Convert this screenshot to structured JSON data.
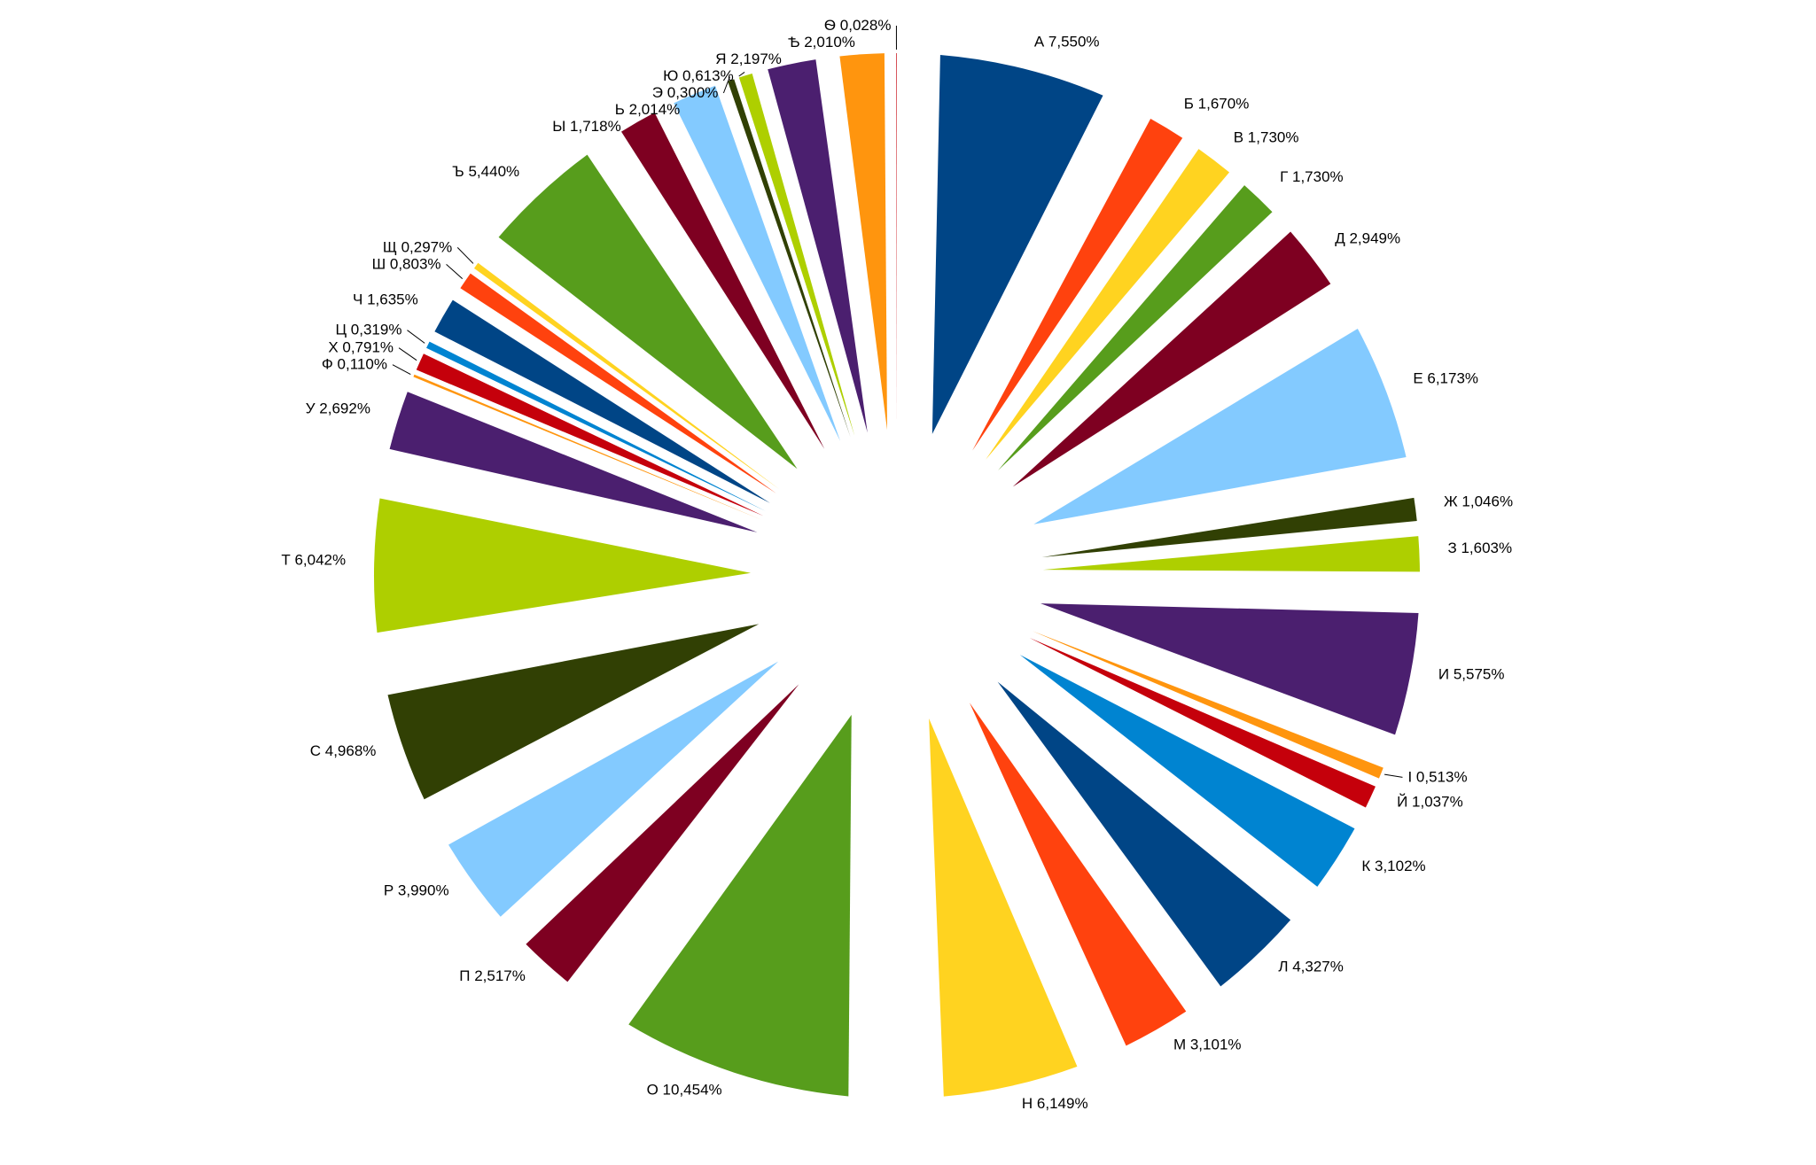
{
  "chart_data": {
    "type": "pie",
    "title": "",
    "legend": "none",
    "data_labels": "category and percent",
    "slices": [
      {
        "label": "А",
        "value": 7.55,
        "text": "А 7,550%",
        "color": "#004586"
      },
      {
        "label": "Б",
        "value": 1.67,
        "text": "Б 1,670%",
        "color": "#ff420e"
      },
      {
        "label": "В",
        "value": 1.73,
        "text": "В 1,730%",
        "color": "#ffd320"
      },
      {
        "label": "Г",
        "value": 1.73,
        "text": "Г 1,730%",
        "color": "#579d1c"
      },
      {
        "label": "Д",
        "value": 2.949,
        "text": "Д 2,949%",
        "color": "#7e0021"
      },
      {
        "label": "Е",
        "value": 6.173,
        "text": "Е 6,173%",
        "color": "#83caff"
      },
      {
        "label": "Ж",
        "value": 1.046,
        "text": "Ж 1,046%",
        "color": "#314004"
      },
      {
        "label": "З",
        "value": 1.603,
        "text": "З 1,603%",
        "color": "#aecf00"
      },
      {
        "label": "И",
        "value": 5.575,
        "text": "И 5,575%",
        "color": "#4b1f6f"
      },
      {
        "label": "І",
        "value": 0.513,
        "text": "І 0,513%",
        "color": "#ff950e"
      },
      {
        "label": "Й",
        "value": 1.037,
        "text": "Й 1,037%",
        "color": "#c5000b"
      },
      {
        "label": "К",
        "value": 3.102,
        "text": "К 3,102%",
        "color": "#0084d1"
      },
      {
        "label": "Л",
        "value": 4.327,
        "text": "Л 4,327%",
        "color": "#004586"
      },
      {
        "label": "М",
        "value": 3.101,
        "text": "М 3,101%",
        "color": "#ff420e"
      },
      {
        "label": "Н",
        "value": 6.149,
        "text": "Н 6,149%",
        "color": "#ffd320"
      },
      {
        "label": "О",
        "value": 10.454,
        "text": "О 10,454%",
        "color": "#579d1c"
      },
      {
        "label": "П",
        "value": 2.517,
        "text": "П 2,517%",
        "color": "#7e0021"
      },
      {
        "label": "Р",
        "value": 3.99,
        "text": "Р 3,990%",
        "color": "#83caff"
      },
      {
        "label": "С",
        "value": 4.968,
        "text": "С 4,968%",
        "color": "#314004"
      },
      {
        "label": "Т",
        "value": 6.042,
        "text": "Т 6,042%",
        "color": "#aecf00"
      },
      {
        "label": "У",
        "value": 2.692,
        "text": "У 2,692%",
        "color": "#4b1f6f"
      },
      {
        "label": "Ф",
        "value": 0.11,
        "text": "Ф 0,110%",
        "color": "#ff950e"
      },
      {
        "label": "Х",
        "value": 0.791,
        "text": "Х 0,791%",
        "color": "#c5000b"
      },
      {
        "label": "Ц",
        "value": 0.319,
        "text": "Ц 0,319%",
        "color": "#0084d1"
      },
      {
        "label": "Ч",
        "value": 1.635,
        "text": "Ч 1,635%",
        "color": "#004586"
      },
      {
        "label": "Ш",
        "value": 0.803,
        "text": "Ш 0,803%",
        "color": "#ff420e"
      },
      {
        "label": "Щ",
        "value": 0.297,
        "text": "Щ 0,297%",
        "color": "#ffd320"
      },
      {
        "label": "Ъ",
        "value": 5.44,
        "text": "Ъ 5,440%",
        "color": "#579d1c"
      },
      {
        "label": "Ы",
        "value": 1.718,
        "text": "Ы 1,718%",
        "color": "#7e0021"
      },
      {
        "label": "Ь",
        "value": 2.014,
        "text": "Ь 2,014%",
        "color": "#83caff"
      },
      {
        "label": "Э",
        "value": 0.3,
        "text": "Э 0,300%",
        "color": "#314004"
      },
      {
        "label": "Ю",
        "value": 0.613,
        "text": "Ю 0,613%",
        "color": "#aecf00"
      },
      {
        "label": "Я",
        "value": 2.197,
        "text": "Я 2,197%",
        "color": "#4b1f6f"
      },
      {
        "label": "Ѣ",
        "value": 2.01,
        "text": "Ѣ 2,010%",
        "color": "#ff950e"
      },
      {
        "label": "Ѳ",
        "value": 0.028,
        "text": "Ѳ 0,028%",
        "color": "#c5000b"
      }
    ]
  }
}
